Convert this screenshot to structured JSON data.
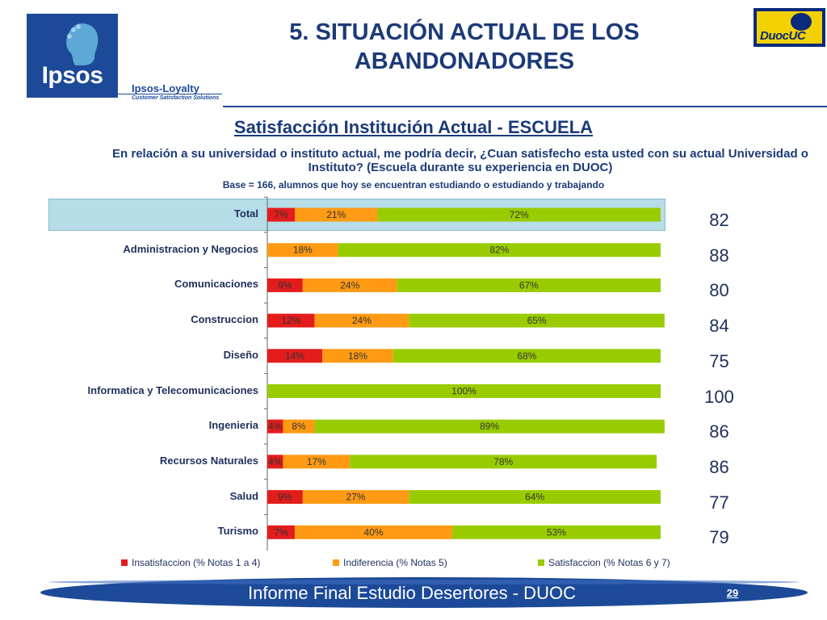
{
  "header": {
    "title": "5. SITUACIÓN ACTUAL DE LOS ABANDONADORES",
    "logo_left": "Ipsos",
    "logo_left_sub": "Ipsos-Loyalty",
    "logo_left_tagline": "Customer Satisfaction Solutions",
    "logo_right": "DuocUC"
  },
  "chart_data": {
    "type": "bar",
    "orientation": "horizontal",
    "stacked": true,
    "title": "Satisfacción Institución Actual - ESCUELA",
    "question": "En relación a su universidad o instituto actual, me podría decir, ¿Cuan satisfecho esta usted con su actual Universidad o Instituto? (Escuela durante su experiencia en DUOC)",
    "base_note": "Base = 166, alumnos que hoy se encuentran estudiando o estudiando y trabajando",
    "categories": [
      "Total",
      "Administracion y Negocios",
      "Comunicaciones",
      "Construccion",
      "Diseño",
      "Informatica y Telecomunicaciones",
      "Ingenieria",
      "Recursos Naturales",
      "Salud",
      "Turismo"
    ],
    "series": [
      {
        "name": "Insatisfaccion (% Notas 1 a 4)",
        "values": [
          7,
          0,
          9,
          12,
          14,
          0,
          4,
          4,
          9,
          7
        ]
      },
      {
        "name": "Indiferencia (% Notas 5)",
        "values": [
          21,
          18,
          24,
          24,
          18,
          0,
          8,
          17,
          27,
          40
        ]
      },
      {
        "name": "Satisfaccion (% Notas 6 y 7)",
        "values": [
          72,
          82,
          67,
          65,
          68,
          100,
          89,
          78,
          64,
          53
        ]
      }
    ],
    "colors": [
      "#e31c1c",
      "#ff9a14",
      "#99cc00"
    ],
    "scores": [
      "82",
      "88",
      "80",
      "84",
      "75",
      "100",
      "86",
      "86",
      "77",
      "79"
    ],
    "legend_position": "bottom",
    "highlight": "Total",
    "xlim": [
      0,
      100
    ]
  },
  "footer": {
    "title": "Informe Final Estudio Desertores - DUOC",
    "page": "29"
  }
}
